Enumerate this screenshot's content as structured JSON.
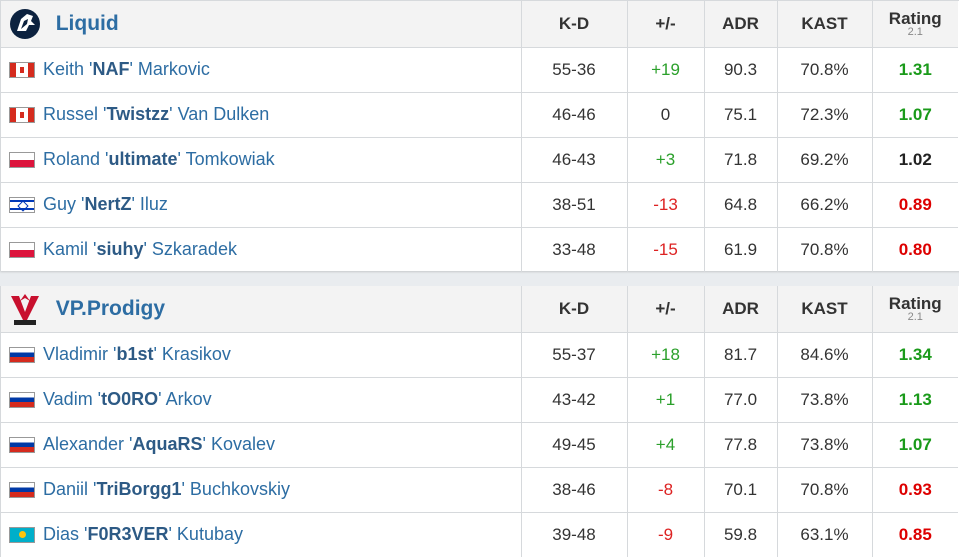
{
  "headers": {
    "kd": "K-D",
    "pm": "+/-",
    "adr": "ADR",
    "kast": "KAST",
    "rating": "Rating",
    "rating_version": "2.1"
  },
  "teams": [
    {
      "name": "Liquid",
      "logo_icon": "liquid-horse-logo",
      "players": [
        {
          "flag": "canada-flag",
          "first": "Keith '",
          "nick": "NAF",
          "last": "' Markovic",
          "kd": "55-36",
          "pm": "+19",
          "pm_sign": "pos",
          "adr": "90.3",
          "kast": "70.8%",
          "rating": "1.31",
          "rating_class": "good"
        },
        {
          "flag": "canada-flag",
          "first": "Russel '",
          "nick": "Twistzz",
          "last": "' Van Dulken",
          "kd": "46-46",
          "pm": "0",
          "pm_sign": "zero",
          "adr": "75.1",
          "kast": "72.3%",
          "rating": "1.07",
          "rating_class": "good"
        },
        {
          "flag": "poland-flag",
          "first": "Roland '",
          "nick": "ultimate",
          "last": "' Tomkowiak",
          "kd": "46-43",
          "pm": "+3",
          "pm_sign": "pos",
          "adr": "71.8",
          "kast": "69.2%",
          "rating": "1.02",
          "rating_class": "mid"
        },
        {
          "flag": "israel-flag",
          "first": "Guy '",
          "nick": "NertZ",
          "last": "' Iluz",
          "kd": "38-51",
          "pm": "-13",
          "pm_sign": "neg",
          "adr": "64.8",
          "kast": "66.2%",
          "rating": "0.89",
          "rating_class": "bad"
        },
        {
          "flag": "poland-flag",
          "first": "Kamil '",
          "nick": "siuhy",
          "last": "' Szkaradek",
          "kd": "33-48",
          "pm": "-15",
          "pm_sign": "neg",
          "adr": "61.9",
          "kast": "70.8%",
          "rating": "0.80",
          "rating_class": "bad"
        }
      ]
    },
    {
      "name": "VP.Prodigy",
      "logo_icon": "vp-prodigy-logo",
      "players": [
        {
          "flag": "russia-flag",
          "first": "Vladimir '",
          "nick": "b1st",
          "last": "' Krasikov",
          "kd": "55-37",
          "pm": "+18",
          "pm_sign": "pos",
          "adr": "81.7",
          "kast": "84.6%",
          "rating": "1.34",
          "rating_class": "good"
        },
        {
          "flag": "russia-flag",
          "first": "Vadim '",
          "nick": "tO0RO",
          "last": "' Arkov",
          "kd": "43-42",
          "pm": "+1",
          "pm_sign": "pos",
          "adr": "77.0",
          "kast": "73.8%",
          "rating": "1.13",
          "rating_class": "good"
        },
        {
          "flag": "russia-flag",
          "first": "Alexander '",
          "nick": "AquaRS",
          "last": "' Kovalev",
          "kd": "49-45",
          "pm": "+4",
          "pm_sign": "pos",
          "adr": "77.8",
          "kast": "73.8%",
          "rating": "1.07",
          "rating_class": "good"
        },
        {
          "flag": "russia-flag",
          "first": "Daniil '",
          "nick": "TriBorgg1",
          "last": "' Buchkovskiy",
          "kd": "38-46",
          "pm": "-8",
          "pm_sign": "neg",
          "adr": "70.1",
          "kast": "70.8%",
          "rating": "0.93",
          "rating_class": "bad"
        },
        {
          "flag": "kazakhstan-flag",
          "first": "Dias '",
          "nick": "F0R3VER",
          "last": "' Kutubay",
          "kd": "39-48",
          "pm": "-9",
          "pm_sign": "neg",
          "adr": "59.8",
          "kast": "63.1%",
          "rating": "0.85",
          "rating_class": "bad"
        }
      ]
    }
  ],
  "colors": {
    "link": "#2d6da3",
    "positive": "#2ba02b",
    "negative": "#dd2222",
    "rating_good": "#1a9a1a",
    "rating_bad": "#dd0000"
  }
}
